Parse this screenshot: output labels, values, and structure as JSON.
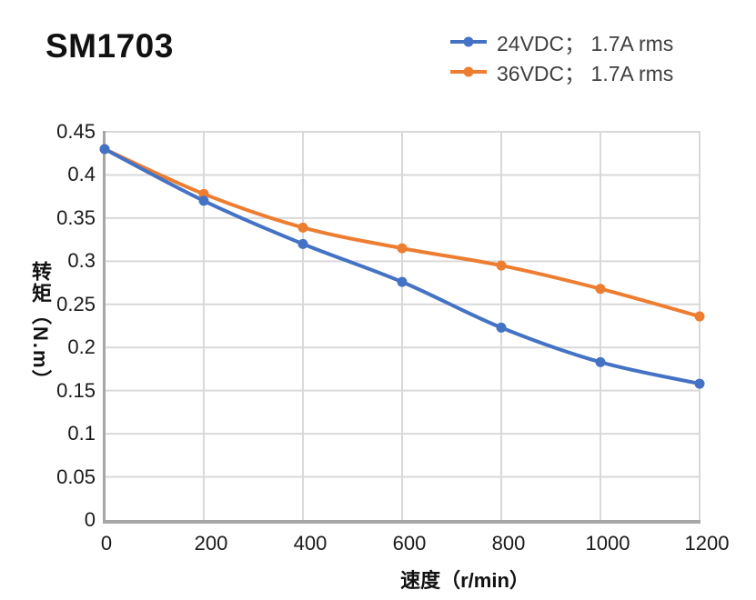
{
  "title": "SM1703",
  "legend": {
    "position": "top-right",
    "marker": "line-with-dot"
  },
  "chart_data": {
    "type": "line",
    "title": "SM1703",
    "xlabel": "速度（r/min）",
    "ylabel": "转矩（N.m）",
    "x": [
      0,
      200,
      400,
      600,
      800,
      1000,
      1200
    ],
    "series": [
      {
        "name": "24VDC； 1.7A rms",
        "color": "#4472C4",
        "values": [
          0.43,
          0.37,
          0.32,
          0.276,
          0.223,
          0.183,
          0.158
        ]
      },
      {
        "name": "36VDC； 1.7A rms",
        "color": "#ED7D31",
        "values": [
          0.43,
          0.378,
          0.339,
          0.315,
          0.295,
          0.268,
          0.236
        ]
      }
    ],
    "xlim": [
      0,
      1200
    ],
    "ylim": [
      0,
      0.45
    ],
    "x_ticks": [
      0,
      200,
      400,
      600,
      800,
      1000,
      1200
    ],
    "x_tick_labels": [
      "0",
      "200",
      "400",
      "600",
      "800",
      "1000",
      "1200"
    ],
    "y_ticks": [
      0,
      0.05,
      0.1,
      0.15,
      0.2,
      0.25,
      0.3,
      0.35,
      0.4,
      0.45
    ],
    "y_tick_labels": [
      "0",
      "0.05",
      "0.1",
      "0.15",
      "0.2",
      "0.25",
      "0.3",
      "0.35",
      "0.4",
      "0.45"
    ],
    "grid": true,
    "line_smoothing": true,
    "marker": "circle",
    "legend_position": "top-right"
  },
  "colors": {
    "grid": "#D9D9D9",
    "axis": "#A6A6A6",
    "tick_text": "#1A1A1A",
    "legend_text": "#404040",
    "title_text": "#111111",
    "background": "#FFFFFF"
  }
}
